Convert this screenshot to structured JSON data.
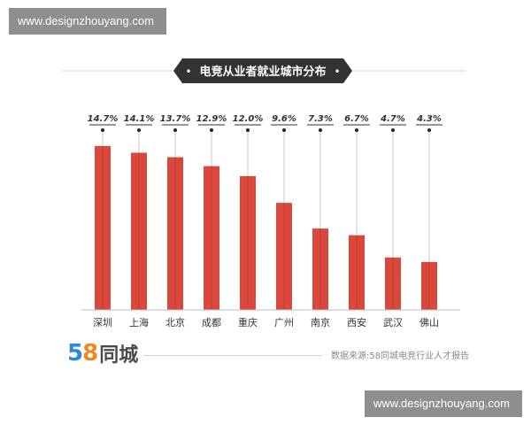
{
  "watermark": {
    "text": "www.designzhouyang.com"
  },
  "logo": {
    "num_first": "5",
    "num_second": "8",
    "text": "同城"
  },
  "source": "数据来源:58同城电竞行业人才报告",
  "colors": {
    "bar": "#d9483b",
    "bar_dark": "#a8322a",
    "banner": "#333333",
    "axis": "#d4d4d4"
  },
  "chart_data": {
    "type": "bar",
    "title": "电竞从业者就业城市分布",
    "categories": [
      "深圳",
      "上海",
      "北京",
      "成都",
      "重庆",
      "广州",
      "南京",
      "西安",
      "武汉",
      "佛山"
    ],
    "values": [
      14.7,
      14.1,
      13.7,
      12.9,
      12.0,
      9.6,
      7.3,
      6.7,
      4.7,
      4.3
    ],
    "value_labels": [
      "14.7%",
      "14.1%",
      "13.7%",
      "12.9%",
      "12.0%",
      "9.6%",
      "7.3%",
      "6.7%",
      "4.7%",
      "4.3%"
    ],
    "unit": "%",
    "ylim": [
      0,
      17
    ],
    "grid": false,
    "legend": "none"
  }
}
